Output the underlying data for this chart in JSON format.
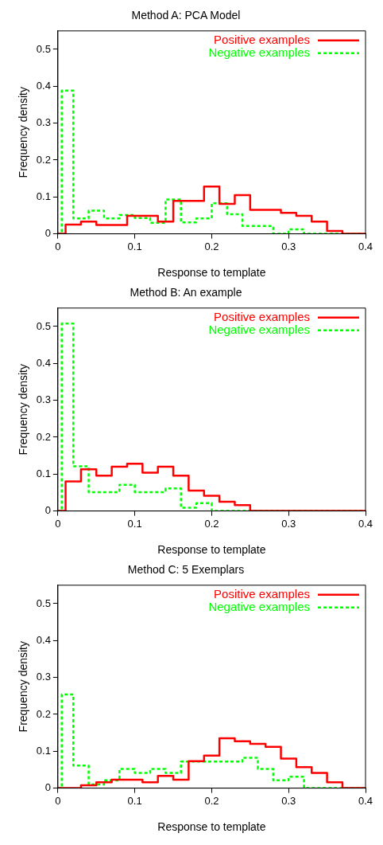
{
  "chart_data": [
    {
      "type": "step",
      "title": "Method A: PCA Model",
      "xlabel": "Response to template",
      "ylabel": "Frequency density",
      "xlim": [
        0,
        0.4
      ],
      "xticks": [
        0,
        0.1,
        0.2,
        0.3,
        0.4
      ],
      "ylim": [
        0,
        0.55
      ],
      "yticks": [
        0,
        0.1,
        0.2,
        0.3,
        0.4,
        0.5
      ],
      "grid": false,
      "legend": "top right",
      "series": [
        {
          "name": "Positive examples",
          "color": "#ff0000",
          "line_style": "solid",
          "x": [
            0,
            0.01,
            0.03,
            0.05,
            0.09,
            0.13,
            0.15,
            0.19,
            0.21,
            0.23,
            0.25,
            0.29,
            0.31,
            0.33,
            0.35,
            0.37,
            0.4
          ],
          "values": [
            0,
            0.025,
            0.033,
            0.024,
            0.049,
            0.033,
            0.089,
            0.128,
            0.081,
            0.105,
            0.065,
            0.057,
            0.049,
            0.033,
            0.008,
            0,
            0
          ]
        },
        {
          "name": "Negative examples",
          "color": "#00ff00",
          "line_style": "dashed",
          "x": [
            0,
            0.005,
            0.02,
            0.04,
            0.06,
            0.08,
            0.1,
            0.12,
            0.14,
            0.16,
            0.18,
            0.2,
            0.22,
            0.24,
            0.28,
            0.3,
            0.32,
            0.4
          ],
          "values": [
            0,
            0.388,
            0.042,
            0.063,
            0.042,
            0.051,
            0.043,
            0.03,
            0.093,
            0.031,
            0.042,
            0.083,
            0.053,
            0.021,
            0,
            0.012,
            0,
            0
          ]
        }
      ]
    },
    {
      "type": "step",
      "title": "Method B: An example",
      "xlabel": "Response to template",
      "ylabel": "Frequency density",
      "xlim": [
        0,
        0.4
      ],
      "xticks": [
        0,
        0.1,
        0.2,
        0.3,
        0.4
      ],
      "ylim": [
        0,
        0.55
      ],
      "yticks": [
        0,
        0.1,
        0.2,
        0.3,
        0.4,
        0.5
      ],
      "grid": false,
      "legend": "top right",
      "series": [
        {
          "name": "Positive examples",
          "color": "#ff0000",
          "line_style": "solid",
          "x": [
            0,
            0.01,
            0.03,
            0.05,
            0.07,
            0.09,
            0.11,
            0.13,
            0.15,
            0.17,
            0.19,
            0.21,
            0.23,
            0.25,
            0.4
          ],
          "values": [
            0,
            0.08,
            0.113,
            0.096,
            0.12,
            0.128,
            0.104,
            0.12,
            0.096,
            0.055,
            0.041,
            0.025,
            0.016,
            0,
            0
          ]
        },
        {
          "name": "Negative examples",
          "color": "#00ff00",
          "line_style": "dashed",
          "x": [
            0,
            0.005,
            0.02,
            0.04,
            0.08,
            0.1,
            0.14,
            0.16,
            0.18,
            0.2,
            0.4
          ],
          "values": [
            0,
            0.508,
            0.121,
            0.051,
            0.071,
            0.051,
            0.061,
            0.009,
            0.021,
            0,
            0
          ]
        }
      ]
    },
    {
      "type": "step",
      "title": "Method C: 5 Exemplars",
      "xlabel": "Response to template",
      "ylabel": "Frequency density",
      "xlim": [
        0,
        0.4
      ],
      "xticks": [
        0,
        0.1,
        0.2,
        0.3,
        0.4
      ],
      "ylim": [
        0,
        0.55
      ],
      "yticks": [
        0,
        0.1,
        0.2,
        0.3,
        0.4,
        0.5
      ],
      "grid": false,
      "legend": "top right",
      "series": [
        {
          "name": "Positive examples",
          "color": "#ff0000",
          "line_style": "solid",
          "x": [
            0,
            0.03,
            0.05,
            0.07,
            0.11,
            0.13,
            0.15,
            0.17,
            0.19,
            0.21,
            0.23,
            0.25,
            0.27,
            0.29,
            0.31,
            0.33,
            0.35,
            0.37,
            0.4
          ],
          "values": [
            0,
            0.008,
            0.016,
            0.023,
            0.016,
            0.033,
            0.023,
            0.073,
            0.088,
            0.135,
            0.127,
            0.12,
            0.112,
            0.08,
            0.057,
            0.041,
            0.016,
            0,
            0
          ]
        },
        {
          "name": "Negative examples",
          "color": "#00ff00",
          "line_style": "dashed",
          "x": [
            0,
            0.005,
            0.02,
            0.04,
            0.06,
            0.08,
            0.1,
            0.12,
            0.14,
            0.16,
            0.24,
            0.26,
            0.28,
            0.3,
            0.32,
            0.4
          ],
          "values": [
            0,
            0.254,
            0.061,
            0.01,
            0.021,
            0.052,
            0.041,
            0.052,
            0.041,
            0.072,
            0.082,
            0.052,
            0.021,
            0.031,
            0,
            0
          ]
        }
      ]
    }
  ]
}
